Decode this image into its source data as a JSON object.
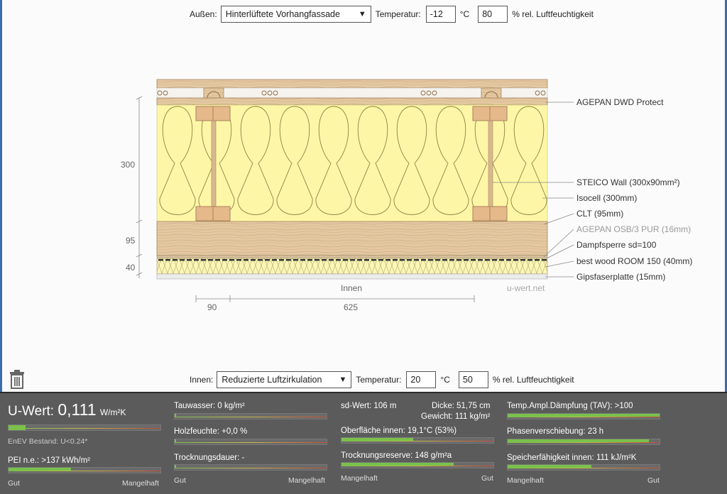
{
  "outside": {
    "label": "Außen:",
    "type_value": "Hinterlüftete Vorhangfassade",
    "temp_label": "Temperatur:",
    "temp_value": "-12",
    "temp_unit": "°C",
    "humidity_value": "80",
    "humidity_unit": "% rel. Luftfeuchtigkeit"
  },
  "inside": {
    "label": "Innen:",
    "type_value": "Reduzierte Luftzirkulation",
    "temp_label": "Temperatur:",
    "temp_value": "20",
    "temp_unit": "°C",
    "humidity_value": "50",
    "humidity_unit": "% rel. Luftfeuchtigkeit"
  },
  "diagram": {
    "dim_300": "300",
    "dim_95": "95",
    "dim_40": "40",
    "dim_90": "90",
    "dim_625": "625",
    "innen_label": "Innen",
    "watermark": "u-wert.net",
    "layers": [
      {
        "label": "AGEPAN DWD Protect",
        "muted": false
      },
      {
        "label": "STEICO  Wall (300x90mm²)",
        "muted": false
      },
      {
        "label": "Isocell (300mm)",
        "muted": false
      },
      {
        "label": "CLT (95mm)",
        "muted": false
      },
      {
        "label": "AGEPAN OSB/3 PUR (16mm)",
        "muted": true
      },
      {
        "label": "Dampfsperre sd=100",
        "muted": false
      },
      {
        "label": "best wood ROOM 150 (40mm)",
        "muted": false
      },
      {
        "label": "Gipsfaserplatte (15mm)",
        "muted": false
      }
    ],
    "colors": {
      "insulation": "#fdf6a6",
      "wood": "#e2c9a3",
      "board_fibre": "#fbf5b6"
    }
  },
  "results": {
    "uwert": {
      "label": "U-Wert:",
      "value": "0,111",
      "unit": "W/m²K",
      "fill": 0.11,
      "enev": "EnEV Bestand: U<0.24*"
    },
    "pei": {
      "label": "PEI n.e.: >137 kWh/m²",
      "fill": 0.41
    },
    "scale_good": "Gut",
    "scale_bad": "Mangelhaft",
    "tauwasser": {
      "label": "Tauwasser: 0 kg/m²",
      "fill": 0.01
    },
    "holzfeuchte": {
      "label": "Holzfeuchte: +0,0 %",
      "fill": 0.01
    },
    "trocknungsdauer": {
      "label": "Trocknungsdauer: -",
      "fill": 0.01
    },
    "sd_wert": "sd-Wert: 106 m",
    "dicke": "Dicke: 51,75 cm",
    "gewicht": "Gewicht: 111 kg/m²",
    "oberflaeche": {
      "label": "Oberfläche innen: 19,1°C (53%)",
      "fill": 0.47
    },
    "trocknungsreserve": {
      "label": "Trocknungsreserve: 148 g/m²a",
      "fill": 0.74
    },
    "tav": {
      "label": "Temp.Ampl.Dämpfung (TAV): >100",
      "fill": 1.0
    },
    "phasen": {
      "label": "Phasenverschiebung: 23 h",
      "fill": 0.93
    },
    "speicher": {
      "label": "Speicherfähigkeit innen: 111 kJ/m²K",
      "fill": 0.55
    }
  },
  "icons": {
    "trash": "trash-icon"
  }
}
